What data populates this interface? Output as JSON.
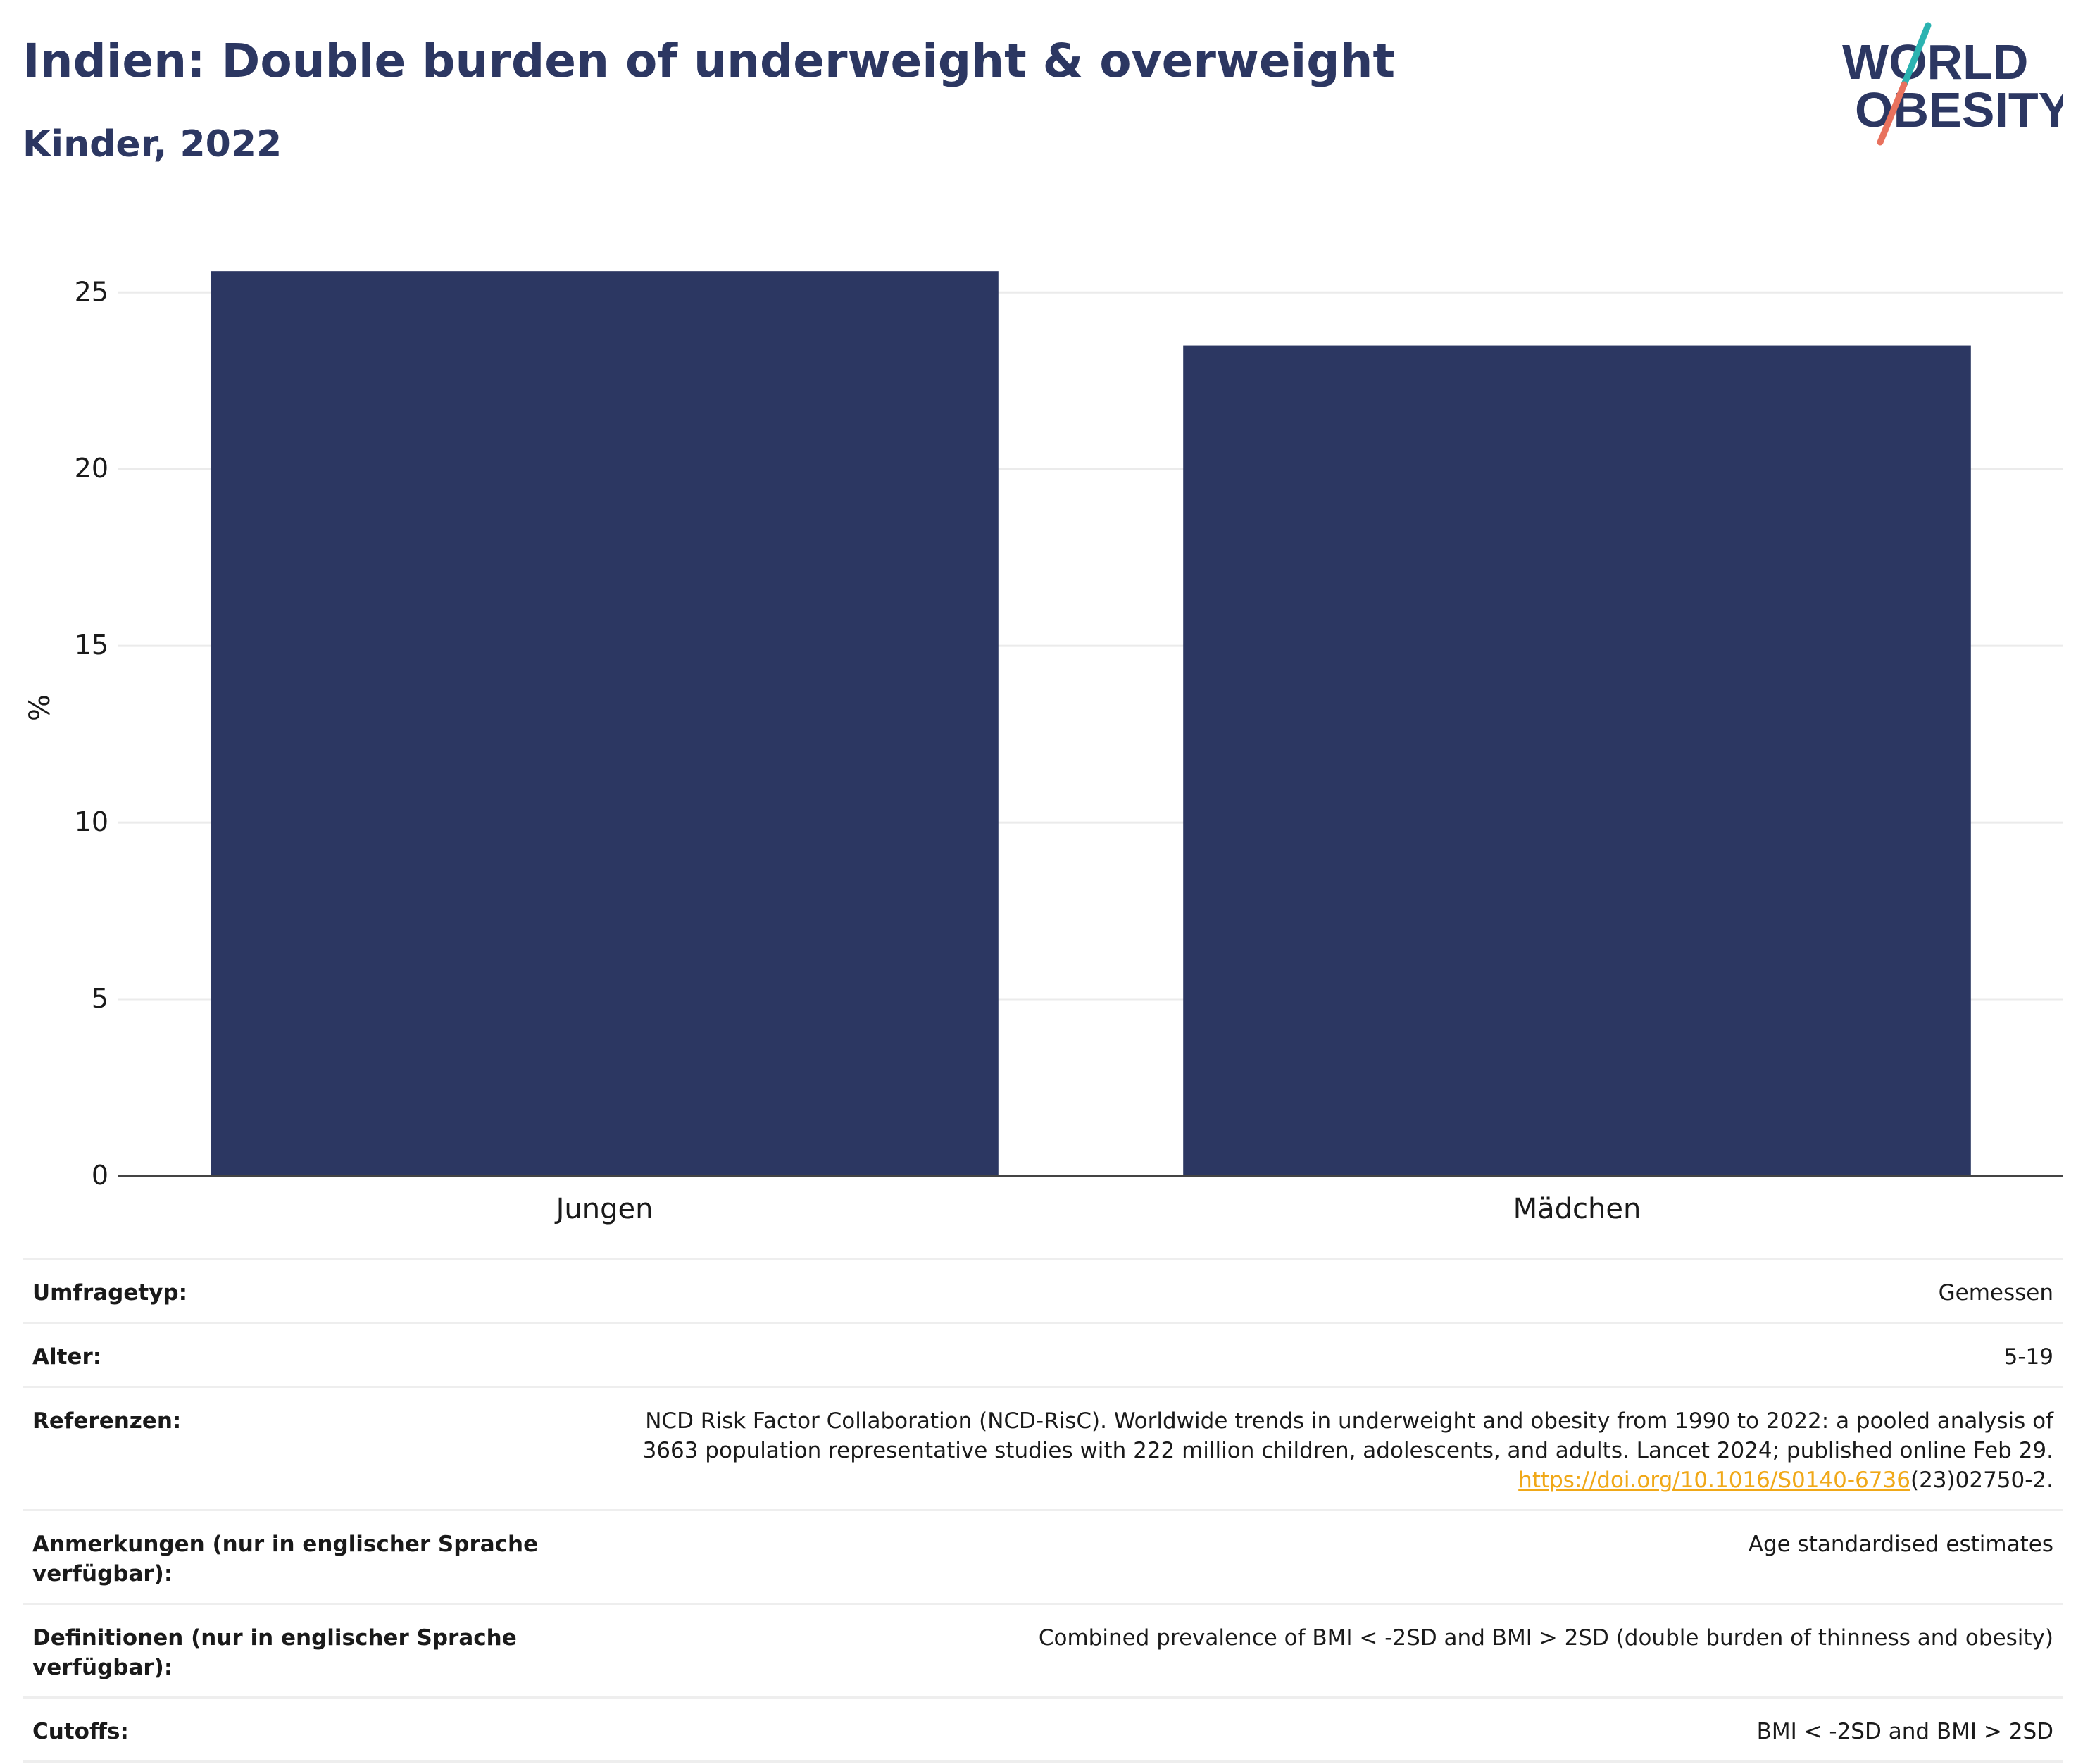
{
  "header": {
    "title": "Indien: Double burden of underweight & overweight",
    "subtitle": "Kinder, 2022"
  },
  "logo": {
    "line1": "WORLD",
    "line2": "OBESITY",
    "accent_teal": "#2bb3b1",
    "accent_coral": "#e8715d"
  },
  "chart_data": {
    "type": "bar",
    "categories": [
      "Jungen",
      "Mädchen"
    ],
    "values": [
      25.6,
      23.5
    ],
    "ylabel": "%",
    "ylim": [
      0,
      26.5
    ],
    "yticks": [
      0,
      5,
      10,
      15,
      20,
      25
    ],
    "grid": true,
    "bar_color": "#2c3762"
  },
  "meta": {
    "survey_label": "Umfragetyp:",
    "survey_value": "Gemessen",
    "age_label": "Alter:",
    "age_value": "5-19",
    "refs_label": "Referenzen:",
    "refs_line1": "NCD Risk Factor Collaboration (NCD-RisC). Worldwide trends in underweight and obesity from 1990 to 2022: a pooled analysis of",
    "refs_line2": "3663 population representative studies with 222 million children, adolescents, and adults. Lancet 2024; published online Feb 29.",
    "refs_link": "https://doi.org/10.1016/S0140-6736",
    "refs_tail": "(23)02750-2.",
    "notes_label": "Anmerkungen (nur in englischer Sprache verfügbar):",
    "notes_value": "Age standardised estimates",
    "defs_label": "Definitionen (nur in englischer Sprache verfügbar):",
    "defs_value": "Combined prevalence of BMI < -2SD and BMI > 2SD (double burden of thinness and obesity)",
    "cutoffs_label": "Cutoffs:",
    "cutoffs_value": "BMI < -2SD and BMI > 2SD"
  }
}
